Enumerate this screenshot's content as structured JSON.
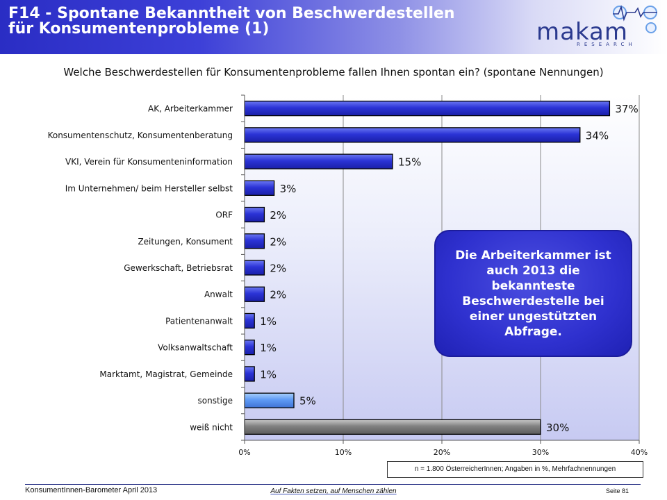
{
  "header": {
    "title_line1": "F14 - Spontane Bekanntheit von Beschwerdestellen",
    "title_line2": "für Konsumentenprobleme (1)"
  },
  "logo": {
    "name": "makam",
    "sub": "RESEARCH"
  },
  "question": "Welche Beschwerdestellen für Konsumentenprobleme fallen Ihnen spontan ein? (spontane Nennungen)",
  "callout": "Die Arbeiterkammer ist auch 2013 die bekannteste Beschwerdestelle bei einer ungestützten Abfrage.",
  "note": "n = 1.800 ÖsterreicherInnen; Angaben in %, Mehrfachnennungen",
  "footer": {
    "left": "KonsumentInnen-Barometer April 2013",
    "center": "Auf Fakten setzen, auf Menschen zählen",
    "right": "Seite 81"
  },
  "colors": {
    "bar_blue": "#2b33d6",
    "bar_light_blue": "#5f9bf5",
    "bar_gray": "#808080",
    "accent": "#2f31cf"
  },
  "chart_data": {
    "type": "bar",
    "orientation": "horizontal",
    "categories": [
      "AK, Arbeiterkammer",
      "Konsumentenschutz, Konsumentenberatung",
      "VKI, Verein für Konsumenteninformation",
      "Im Unternehmen/ beim Hersteller selbst",
      "ORF",
      "Zeitungen, Konsument",
      "Gewerkschaft, Betriebsrat",
      "Anwalt",
      "Patientenanwalt",
      "Volksanwaltschaft",
      "Marktamt, Magistrat, Gemeinde",
      "sonstige",
      "weiß nicht"
    ],
    "values": [
      37,
      34,
      15,
      3,
      2,
      2,
      2,
      2,
      1,
      1,
      1,
      5,
      30
    ],
    "data_labels": [
      "37%",
      "34%",
      "15%",
      "3%",
      "2%",
      "2%",
      "2%",
      "2%",
      "1%",
      "1%",
      "1%",
      "5%",
      "30%"
    ],
    "bar_colors": [
      "blue",
      "blue",
      "blue",
      "blue",
      "blue",
      "blue",
      "blue",
      "blue",
      "blue",
      "blue",
      "blue",
      "light_blue",
      "gray"
    ],
    "xlim": [
      0,
      40
    ],
    "xticks": [
      0,
      10,
      20,
      30,
      40
    ],
    "xtick_labels": [
      "0%",
      "10%",
      "20%",
      "30%",
      "40%"
    ],
    "grid": "vertical",
    "title": "",
    "xlabel": "",
    "ylabel": ""
  }
}
